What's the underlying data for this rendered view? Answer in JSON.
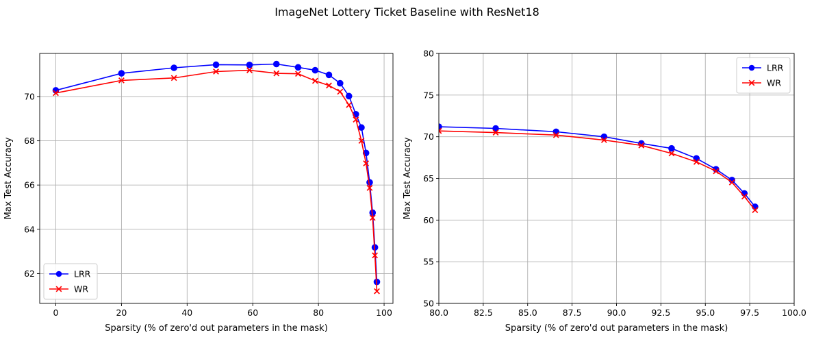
{
  "figure": {
    "title": "ImageNet Lottery Ticket Baseline with ResNet18"
  },
  "colors": {
    "LRR": "#0000ff",
    "WR": "#ff0000",
    "grid": "#b0b0b0"
  },
  "chart_data": [
    {
      "type": "line",
      "xlabel": "Sparsity (% of zero'd out parameters in the mask)",
      "ylabel": "Max Test Accuracy",
      "xlim": [
        -4.9,
        102.7
      ],
      "ylim": [
        60.65,
        71.95
      ],
      "xticks": [
        0,
        20,
        40,
        60,
        80,
        100
      ],
      "yticks": [
        62,
        64,
        66,
        68,
        70
      ],
      "grid": true,
      "legend": {
        "position": "lower-left",
        "entries": [
          "LRR",
          "WR"
        ]
      },
      "series": [
        {
          "name": "LRR",
          "marker": "circle",
          "x": [
            0,
            20,
            36,
            48.8,
            59,
            67.2,
            73.8,
            79,
            83.2,
            86.6,
            89.3,
            91.4,
            93.1,
            94.5,
            95.6,
            96.5,
            97.2,
            97.8
          ],
          "y": [
            70.28,
            71.05,
            71.3,
            71.44,
            71.43,
            71.47,
            71.32,
            71.19,
            70.98,
            70.6,
            70.02,
            69.2,
            68.6,
            67.45,
            66.12,
            64.75,
            63.18,
            61.62
          ]
        },
        {
          "name": "WR",
          "marker": "x",
          "x": [
            0,
            20,
            36,
            48.8,
            59,
            67.2,
            73.8,
            79,
            83.2,
            86.6,
            89.3,
            91.4,
            93.1,
            94.5,
            95.6,
            96.5,
            97.2,
            97.8
          ],
          "y": [
            70.16,
            70.73,
            70.84,
            71.13,
            71.19,
            71.05,
            71.03,
            70.71,
            70.5,
            70.22,
            69.62,
            68.96,
            68.0,
            66.98,
            65.87,
            64.52,
            62.82,
            61.2
          ]
        }
      ]
    },
    {
      "type": "line",
      "xlabel": "Sparsity (% of zero'd out parameters in the mask)",
      "ylabel": "Max Test Accuracy",
      "xlim": [
        80,
        100
      ],
      "ylim": [
        50,
        80
      ],
      "xticks": [
        "80.0",
        "82.5",
        "85.0",
        "87.5",
        "90.0",
        "92.5",
        "95.0",
        "97.5",
        "100.0"
      ],
      "yticks": [
        50,
        55,
        60,
        65,
        70,
        75,
        80
      ],
      "grid": true,
      "legend": {
        "position": "upper-right",
        "entries": [
          "LRR",
          "WR"
        ]
      },
      "series": [
        {
          "name": "LRR",
          "marker": "circle",
          "x": [
            80,
            83.2,
            86.6,
            89.3,
            91.4,
            93.1,
            94.5,
            95.6,
            96.5,
            97.2,
            97.8
          ],
          "y": [
            71.2,
            71.0,
            70.6,
            70.0,
            69.2,
            68.6,
            67.4,
            66.1,
            64.8,
            63.2,
            61.6
          ]
        },
        {
          "name": "WR",
          "marker": "x",
          "x": [
            80,
            83.2,
            86.6,
            89.3,
            91.4,
            93.1,
            94.5,
            95.6,
            96.5,
            97.2,
            97.8
          ],
          "y": [
            70.7,
            70.5,
            70.2,
            69.6,
            68.96,
            68.0,
            66.98,
            65.87,
            64.52,
            62.82,
            61.2
          ]
        }
      ]
    }
  ]
}
